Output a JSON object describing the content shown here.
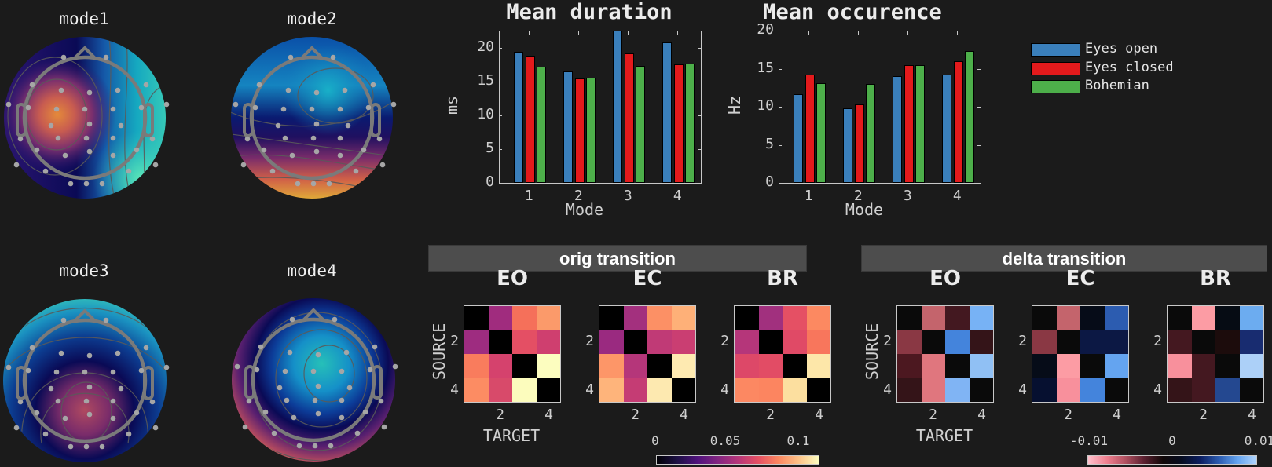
{
  "topomaps": [
    {
      "title": "mode1"
    },
    {
      "title": "mode2"
    },
    {
      "title": "mode3"
    },
    {
      "title": "mode4"
    }
  ],
  "colors": {
    "eyes_open": "#3a7fbb",
    "eyes_closed": "#e31a1c",
    "bohemian": "#4daf4a",
    "background": "#1b1b1b",
    "section_header_bg": "#4d4d4d"
  },
  "legend": {
    "items": [
      {
        "label": "Eyes open",
        "color": "#3a7fbb"
      },
      {
        "label": "Eyes closed",
        "color": "#e31a1c"
      },
      {
        "label": "Bohemian",
        "color": "#4daf4a"
      }
    ]
  },
  "sections": {
    "orig": {
      "title": "orig transition"
    },
    "delta": {
      "title": "delta transition"
    }
  },
  "chart_data": [
    {
      "type": "bar",
      "title": "Mean duration",
      "xlabel": "Mode",
      "ylabel": "ms",
      "categories": [
        "1",
        "2",
        "3",
        "4"
      ],
      "ylim": [
        0,
        22.6
      ],
      "yticks": [
        "0",
        "5",
        "10",
        "15",
        "20"
      ],
      "series": [
        {
          "name": "Eyes open",
          "values": [
            19.5,
            16.6,
            22.6,
            20.8
          ]
        },
        {
          "name": "Eyes closed",
          "values": [
            18.9,
            15.5,
            19.2,
            17.6
          ]
        },
        {
          "name": "Bohemian",
          "values": [
            17.2,
            15.6,
            17.4,
            17.7
          ]
        }
      ],
      "grid": false
    },
    {
      "type": "bar",
      "title": "Mean occurence",
      "xlabel": "Mode",
      "ylabel": "Hz",
      "categories": [
        "1",
        "2",
        "3",
        "4"
      ],
      "ylim": [
        0,
        20
      ],
      "yticks": [
        "0",
        "5",
        "10",
        "15",
        "20"
      ],
      "series": [
        {
          "name": "Eyes open",
          "values": [
            11.7,
            9.8,
            14.0,
            14.2
          ]
        },
        {
          "name": "Eyes closed",
          "values": [
            14.2,
            10.3,
            15.5,
            16.0
          ]
        },
        {
          "name": "Bohemian",
          "values": [
            13.1,
            13.0,
            15.5,
            17.3
          ]
        }
      ],
      "legend_position": "right",
      "grid": false
    },
    {
      "type": "heatmap",
      "group": "orig transition",
      "xlabel": "TARGET",
      "ylabel": "SOURCE",
      "xticks": [
        "2",
        "4"
      ],
      "yticks": [
        "2",
        "4"
      ],
      "colorbar": {
        "ticks": [
          "0",
          "0.05",
          "0.1"
        ],
        "range": [
          0,
          0.12
        ],
        "colormap": "magma"
      },
      "panels": [
        {
          "title": "EO",
          "values": [
            [
              0,
              0.045,
              0.085,
              0.095
            ],
            [
              0.044,
              0,
              0.073,
              0.066
            ],
            [
              0.089,
              0.068,
              0,
              0.12
            ],
            [
              0.092,
              0.07,
              0.12,
              0
            ]
          ],
          "colors": [
            [
              "#000000",
              "#a02c7e",
              "#f5705a",
              "#fb9a6a"
            ],
            [
              "#9e2c80",
              "#000000",
              "#e44f64",
              "#cf3f6f"
            ],
            [
              "#f97c5d",
              "#d5426d",
              "#000000",
              "#fcfdbf"
            ],
            [
              "#fc8c63",
              "#d84a6a",
              "#fcfcbd",
              "#000000"
            ]
          ]
        },
        {
          "title": "EC",
          "values": [
            [
              0,
              0.046,
              0.093,
              0.102
            ],
            [
              0.043,
              0,
              0.059,
              0.063
            ],
            [
              0.095,
              0.055,
              0,
              0.115
            ],
            [
              0.103,
              0.061,
              0.115,
              0
            ]
          ],
          "colors": [
            [
              "#000000",
              "#a3307e",
              "#fc9065",
              "#feb078"
            ],
            [
              "#9a2a80",
              "#000000",
              "#c03a76",
              "#ca3e72"
            ],
            [
              "#fd9668",
              "#b5367a",
              "#000000",
              "#feeab1"
            ],
            [
              "#feb47b",
              "#c53c74",
              "#fde9b0",
              "#000000"
            ]
          ]
        },
        {
          "title": "BR",
          "values": [
            [
              0,
              0.046,
              0.074,
              0.091
            ],
            [
              0.055,
              0,
              0.072,
              0.085
            ],
            [
              0.071,
              0.073,
              0,
              0.114
            ],
            [
              0.091,
              0.09,
              0.112,
              0
            ]
          ],
          "colors": [
            [
              "#000000",
              "#a1307e",
              "#e55064",
              "#fc8961"
            ],
            [
              "#b5367a",
              "#000000",
              "#e04a66",
              "#f8765c"
            ],
            [
              "#dd4868",
              "#e24c65",
              "#000000",
              "#fde7a9"
            ],
            [
              "#fc8862",
              "#fc8560",
              "#fcdf9f",
              "#000000"
            ]
          ]
        }
      ]
    },
    {
      "type": "heatmap",
      "group": "delta transition",
      "xlabel": "TARGET",
      "ylabel": "SOURCE",
      "xticks": [
        "2",
        "4"
      ],
      "yticks": [
        "2",
        "4"
      ],
      "colorbar": {
        "ticks": [
          "-0.01",
          "0",
          "0.01"
        ],
        "range": [
          -0.012,
          0.012
        ],
        "colormap": "diverging pink-black-blue"
      },
      "panels": [
        {
          "title": "EO",
          "values": [
            [
              0,
              -0.006,
              -0.002,
              0.009
            ],
            [
              -0.004,
              0,
              0.006,
              -0.0015
            ],
            [
              -0.002,
              -0.008,
              0,
              0.01
            ],
            [
              -0.0015,
              -0.008,
              0.0095,
              0
            ]
          ],
          "colors": [
            [
              "#0a0a0a",
              "#c4646c",
              "#431820",
              "#77b2f5"
            ],
            [
              "#8a3844",
              "#0a0a0a",
              "#4484dc",
              "#341418"
            ],
            [
              "#4c1820",
              "#e0767e",
              "#0a0a0a",
              "#90c0f4"
            ],
            [
              "#341418",
              "#e0767e",
              "#80b4f4",
              "#0a0a0a"
            ]
          ]
        },
        {
          "title": "EC",
          "values": [
            [
              0,
              -0.006,
              0.0005,
              0.004
            ],
            [
              -0.004,
              0,
              0.0015,
              0.0015
            ],
            [
              0.0005,
              -0.01,
              0,
              0.008
            ],
            [
              0.001,
              -0.0095,
              0.006,
              0
            ]
          ],
          "colors": [
            [
              "#0a0a0a",
              "#c4646c",
              "#060c18",
              "#2c5cb0"
            ],
            [
              "#8a3844",
              "#0a0a0a",
              "#0c1844",
              "#0c1844"
            ],
            [
              "#060c18",
              "#fc9ca4",
              "#0a0a0a",
              "#64a4f0"
            ],
            [
              "#061030",
              "#f8909c",
              "#4484dc",
              "#0a0a0a"
            ]
          ]
        },
        {
          "title": "BR",
          "values": [
            [
              0,
              -0.01,
              0.0003,
              0.008
            ],
            [
              -0.002,
              0,
              -0.0008,
              0.0025
            ],
            [
              -0.0095,
              -0.002,
              0,
              0.011
            ],
            [
              -0.0015,
              -0.002,
              0.0035,
              0
            ]
          ],
          "colors": [
            [
              "#0a0a0a",
              "#fc9ca4",
              "#060c14",
              "#6cacf0"
            ],
            [
              "#441820",
              "#0a0a0a",
              "#1c0c0c",
              "#182c70"
            ],
            [
              "#f8909c",
              "#441820",
              "#0a0a0a",
              "#acd0f8"
            ],
            [
              "#341418",
              "#441820",
              "#244890",
              "#0a0a0a"
            ]
          ]
        }
      ]
    }
  ]
}
